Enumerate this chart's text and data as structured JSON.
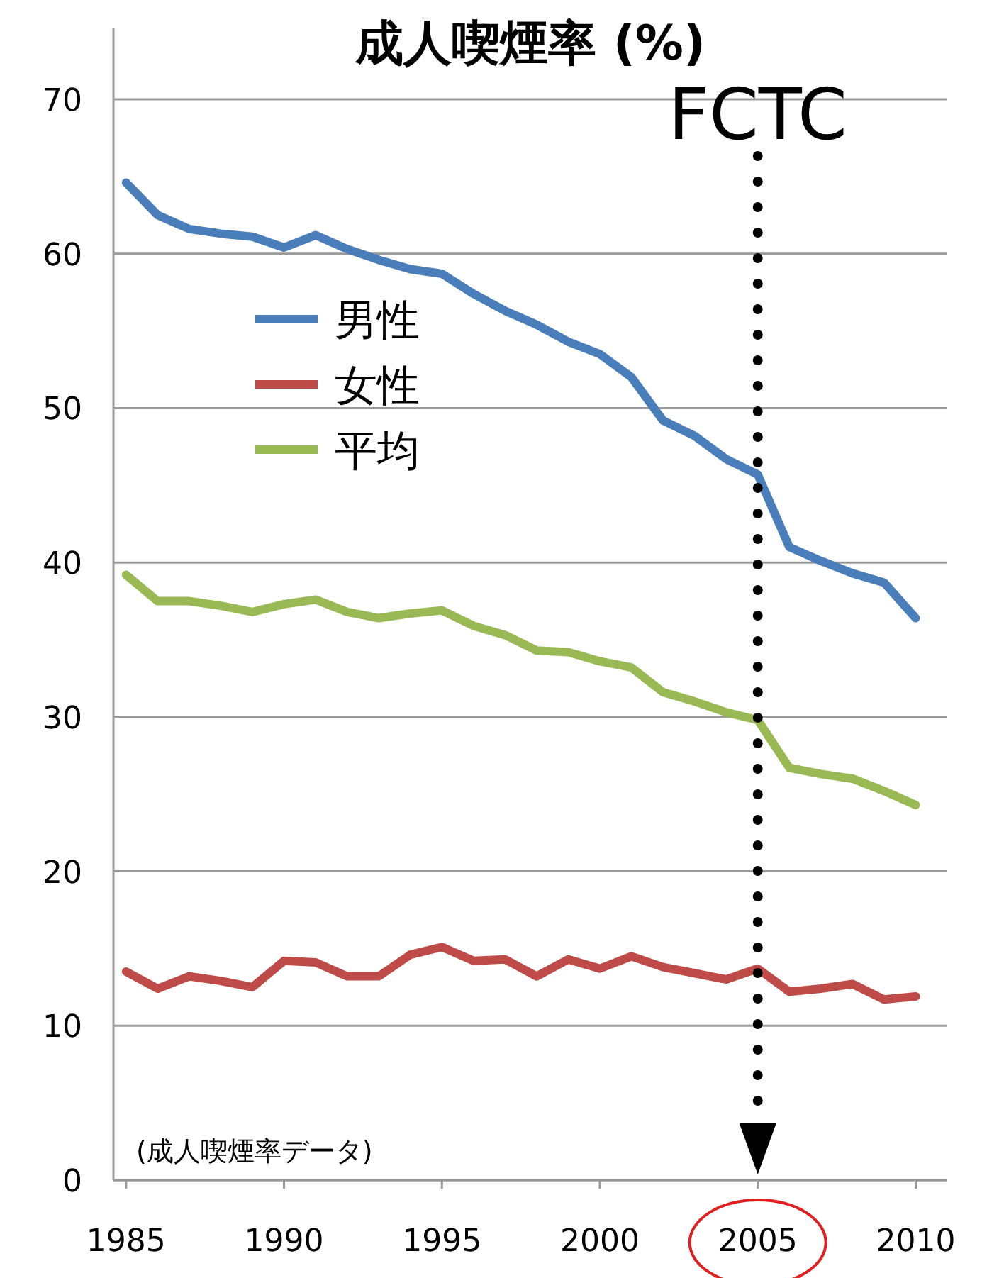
{
  "chart_data": {
    "type": "line",
    "title": "成人喫煙率 (%)",
    "annotations": [
      "(成人喫煙率データ)"
    ],
    "x": [
      1985,
      1986,
      1987,
      1988,
      1989,
      1990,
      1991,
      1992,
      1993,
      1994,
      1995,
      1996,
      1997,
      1998,
      1999,
      2000,
      2001,
      2002,
      2003,
      2004,
      2005,
      2006,
      2007,
      2008,
      2009,
      2010
    ],
    "series": [
      {
        "name": "男性",
        "color": "#4a7ebb",
        "values": [
          64.6,
          62.5,
          61.6,
          61.3,
          61.1,
          60.4,
          61.2,
          60.3,
          59.6,
          59.0,
          58.7,
          57.4,
          56.3,
          55.4,
          54.3,
          53.5,
          52.0,
          49.2,
          48.2,
          46.7,
          45.7,
          41.0,
          40.1,
          39.3,
          38.7,
          36.4
        ]
      },
      {
        "name": "女性",
        "color": "#be4b48",
        "values": [
          13.5,
          12.4,
          13.2,
          12.9,
          12.5,
          14.2,
          14.1,
          13.2,
          13.2,
          14.6,
          15.1,
          14.2,
          14.3,
          13.2,
          14.3,
          13.7,
          14.5,
          13.8,
          13.4,
          13.0,
          13.7,
          12.2,
          12.4,
          12.7,
          11.7,
          11.9
        ]
      },
      {
        "name": "平均",
        "color": "#98b954",
        "values": [
          39.2,
          37.5,
          37.5,
          37.2,
          36.8,
          37.3,
          37.6,
          36.8,
          36.4,
          36.7,
          36.9,
          35.9,
          35.3,
          34.3,
          34.2,
          33.6,
          33.2,
          31.6,
          31.0,
          30.3,
          29.8,
          26.7,
          26.3,
          26.0,
          25.2,
          24.3
        ]
      }
    ],
    "xlim": [
      1984.6,
      2011.0
    ],
    "xticks": [
      1985,
      1990,
      1995,
      2000,
      2005,
      2010
    ],
    "ylim": [
      0,
      70
    ],
    "yticks": [
      0,
      10,
      20,
      30,
      40,
      50,
      60,
      70
    ],
    "ref_lines": [
      {
        "axis": "x",
        "value": 2005,
        "label": "FCTC",
        "color": "#000000",
        "line_style": "dotted"
      }
    ],
    "grid": "y",
    "legend": "left",
    "marker": "none",
    "line_style": "solid"
  }
}
